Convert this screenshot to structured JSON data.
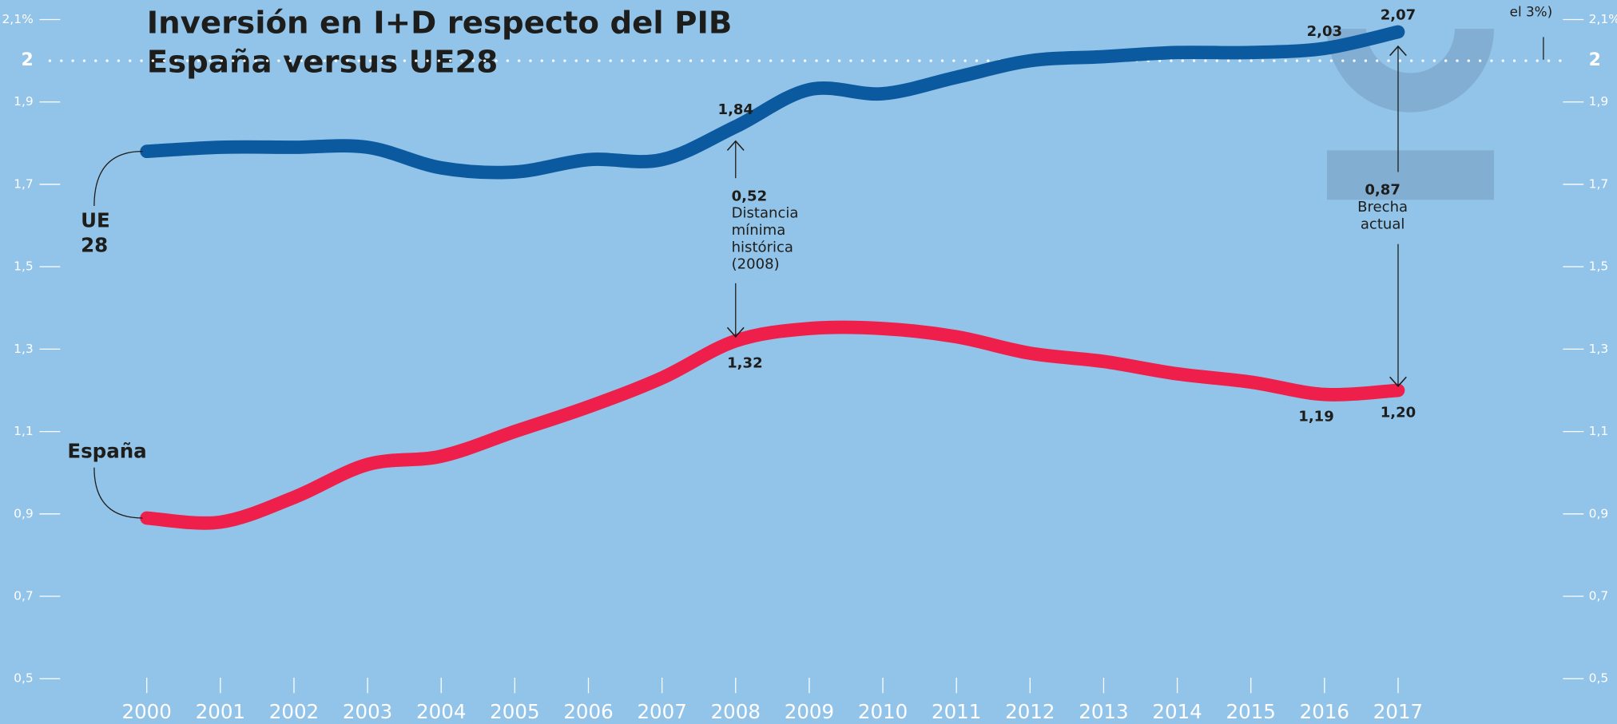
{
  "chart_data": {
    "type": "line",
    "title": "Inversión en I+D respecto del PIB",
    "subtitle": "España versus UE28",
    "categories": [
      "2000",
      "2001",
      "2002",
      "2003",
      "2004",
      "2005",
      "2006",
      "2007",
      "2008",
      "2009",
      "2010",
      "2011",
      "2012",
      "2013",
      "2014",
      "2015",
      "2016",
      "2017"
    ],
    "series": [
      {
        "name": "UE 28",
        "color": "#0b5aa0",
        "values": [
          1.78,
          1.79,
          1.79,
          1.79,
          1.74,
          1.73,
          1.76,
          1.76,
          1.84,
          1.93,
          1.92,
          1.96,
          2.0,
          2.01,
          2.02,
          2.02,
          2.03,
          2.07
        ],
        "value_labels": [
          null,
          null,
          null,
          null,
          null,
          null,
          null,
          null,
          "1,84",
          null,
          null,
          null,
          null,
          null,
          null,
          null,
          "2,03",
          "2,07"
        ]
      },
      {
        "name": "España",
        "color": "#ee1f4b",
        "values": [
          0.89,
          0.88,
          0.94,
          1.02,
          1.04,
          1.1,
          1.16,
          1.23,
          1.32,
          1.35,
          1.35,
          1.33,
          1.29,
          1.27,
          1.24,
          1.22,
          1.19,
          1.2
        ],
        "value_labels": [
          null,
          null,
          null,
          null,
          null,
          null,
          null,
          null,
          "1,32",
          null,
          null,
          null,
          null,
          null,
          null,
          null,
          "1,19",
          "1,20"
        ]
      }
    ],
    "ylim": [
      0.5,
      2.1
    ],
    "yticks": [
      {
        "value": 0.5,
        "label": "0,5"
      },
      {
        "value": 0.7,
        "label": "0,7"
      },
      {
        "value": 0.9,
        "label": "0,9"
      },
      {
        "value": 1.1,
        "label": "1,1"
      },
      {
        "value": 1.3,
        "label": "1,3"
      },
      {
        "value": 1.5,
        "label": "1,5"
      },
      {
        "value": 1.7,
        "label": "1,7"
      },
      {
        "value": 1.9,
        "label": "1,9"
      },
      2,
      {
        "value": 2.1,
        "label": "2,1%"
      }
    ],
    "annotations": [
      {
        "x": "2008",
        "value": "0,52",
        "lines": [
          "Distancia",
          "mínima",
          "histórica",
          "(2008)"
        ]
      },
      {
        "x": "2017",
        "value": "0,87",
        "lines": [
          "Brecha",
          "actual"
        ]
      }
    ],
    "note": "el 3%)"
  }
}
